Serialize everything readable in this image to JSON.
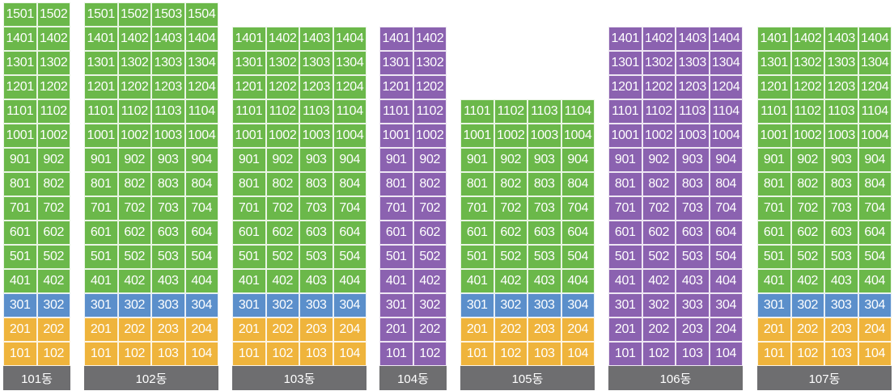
{
  "colors": {
    "general": "#6bb84a",
    "highlight": "#8b62b0",
    "floor_3": "#5b8fcb",
    "floor_1_2": "#efb43c",
    "label_bg": "#6e6e70"
  },
  "buildings": [
    {
      "name": "101동",
      "top_floor": 15,
      "units_per_floor": 2,
      "color_scheme": "general"
    },
    {
      "name": "102동",
      "top_floor": 15,
      "units_per_floor": 4,
      "color_scheme": "general"
    },
    {
      "name": "103동",
      "top_floor": 14,
      "units_per_floor": 4,
      "color_scheme": "general"
    },
    {
      "name": "104동",
      "top_floor": 14,
      "units_per_floor": 2,
      "color_scheme": "highlight"
    },
    {
      "name": "105동",
      "top_floor": 11,
      "units_per_floor": 4,
      "color_scheme": "general"
    },
    {
      "name": "106동",
      "top_floor": 14,
      "units_per_floor": 4,
      "color_scheme": "highlight"
    },
    {
      "name": "107동",
      "top_floor": 14,
      "units_per_floor": 4,
      "color_scheme": "general"
    }
  ]
}
